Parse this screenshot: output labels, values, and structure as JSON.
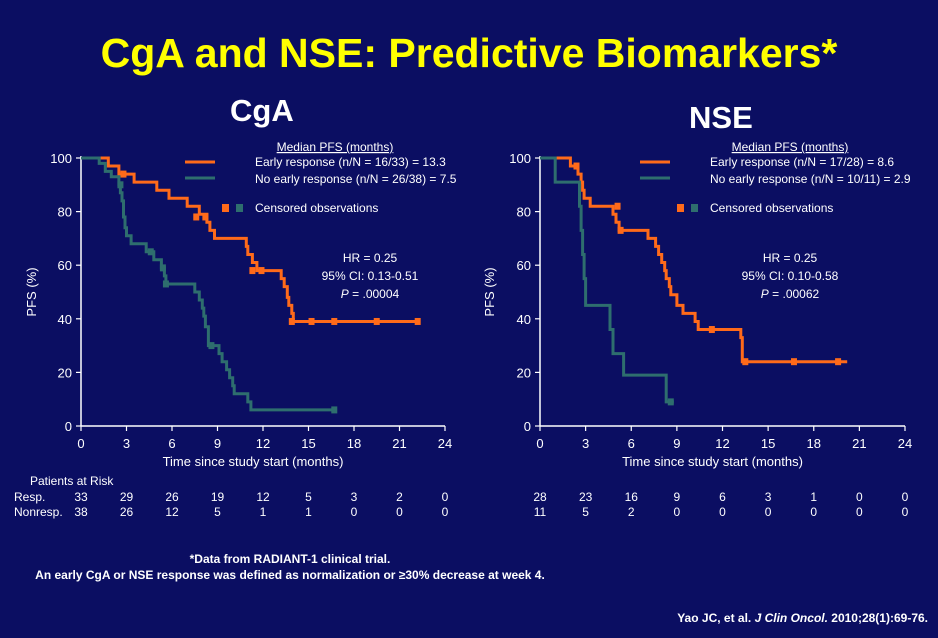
{
  "title": "CgA and NSE: Predictive Biomarkers*",
  "colors": {
    "early": "#ff6a1a",
    "no_early": "#2e6e6e",
    "background": "#0b0e62",
    "title": "#ffff00"
  },
  "chart_data": [
    {
      "type": "line",
      "subtitle": "CgA",
      "xlabel": "Time since study start (months)",
      "ylabel": "PFS (%)",
      "xlim": [
        0,
        24
      ],
      "ylim": [
        0,
        100
      ],
      "xticks": [
        0,
        3,
        6,
        9,
        12,
        15,
        18,
        21,
        24
      ],
      "yticks": [
        0,
        20,
        40,
        60,
        80,
        100
      ],
      "legend_header": "Median PFS (months)",
      "censored_label": "Censored observations",
      "annotation": {
        "hr": "HR = 0.25",
        "ci": "95% CI: 0.13-0.51",
        "p_label": "P",
        "p_value": " = .00004"
      },
      "series": [
        {
          "name": "Early response (n/N = 16/33) = 13.3",
          "color": "#ff6a1a",
          "steps": [
            [
              0,
              100
            ],
            [
              1.8,
              100
            ],
            [
              1.8,
              97
            ],
            [
              2.5,
              97
            ],
            [
              2.5,
              94
            ],
            [
              3.5,
              94
            ],
            [
              3.5,
              91
            ],
            [
              5,
              91
            ],
            [
              5,
              88
            ],
            [
              5.8,
              88
            ],
            [
              5.8,
              85
            ],
            [
              7,
              85
            ],
            [
              7,
              82
            ],
            [
              7.8,
              82
            ],
            [
              7.8,
              79
            ],
            [
              8.3,
              79
            ],
            [
              8.3,
              76
            ],
            [
              8.5,
              76
            ],
            [
              8.5,
              73
            ],
            [
              8.8,
              73
            ],
            [
              8.8,
              70
            ],
            [
              10.9,
              70
            ],
            [
              10.9,
              67
            ],
            [
              11,
              67
            ],
            [
              11,
              64
            ],
            [
              11.3,
              64
            ],
            [
              11.3,
              61
            ],
            [
              11.6,
              61
            ],
            [
              11.6,
              58
            ],
            [
              13.2,
              58
            ],
            [
              13.2,
              55
            ],
            [
              13.4,
              55
            ],
            [
              13.4,
              52
            ],
            [
              13.6,
              52
            ],
            [
              13.6,
              48
            ],
            [
              13.7,
              48
            ],
            [
              13.7,
              45
            ],
            [
              13.9,
              45
            ],
            [
              13.9,
              42
            ],
            [
              14.0,
              42
            ],
            [
              14.0,
              39
            ],
            [
              22.2,
              39
            ]
          ],
          "censored": [
            [
              2.8,
              94
            ],
            [
              7.6,
              78
            ],
            [
              8.2,
              78
            ],
            [
              11.3,
              58
            ],
            [
              11.9,
              58
            ],
            [
              13.9,
              39
            ],
            [
              15.2,
              39
            ],
            [
              16.7,
              39
            ],
            [
              19.5,
              39
            ],
            [
              22.2,
              39
            ]
          ]
        },
        {
          "name": "No early response (n/N = 26/38) = 7.5",
          "color": "#2e6e6e",
          "steps": [
            [
              0,
              100
            ],
            [
              1.2,
              100
            ],
            [
              1.2,
              98
            ],
            [
              1.6,
              98
            ],
            [
              1.6,
              95
            ],
            [
              2,
              95
            ],
            [
              2,
              93
            ],
            [
              2.5,
              93
            ],
            [
              2.5,
              90
            ],
            [
              2.6,
              90
            ],
            [
              2.6,
              87
            ],
            [
              2.7,
              87
            ],
            [
              2.7,
              84
            ],
            [
              2.8,
              84
            ],
            [
              2.8,
              78
            ],
            [
              2.9,
              78
            ],
            [
              2.9,
              74
            ],
            [
              3,
              74
            ],
            [
              3,
              71
            ],
            [
              3.3,
              71
            ],
            [
              3.3,
              68
            ],
            [
              4.3,
              68
            ],
            [
              4.3,
              65
            ],
            [
              4.8,
              65
            ],
            [
              4.8,
              62
            ],
            [
              5.3,
              62
            ],
            [
              5.3,
              59
            ],
            [
              5.5,
              59
            ],
            [
              5.5,
              56
            ],
            [
              5.6,
              56
            ],
            [
              5.6,
              53
            ],
            [
              7.5,
              53
            ],
            [
              7.5,
              50
            ],
            [
              7.8,
              50
            ],
            [
              7.8,
              47
            ],
            [
              8,
              47
            ],
            [
              8,
              44
            ],
            [
              8.1,
              44
            ],
            [
              8.1,
              41
            ],
            [
              8.2,
              41
            ],
            [
              8.2,
              37
            ],
            [
              8.4,
              37
            ],
            [
              8.4,
              30
            ],
            [
              9.1,
              30
            ],
            [
              9.1,
              27
            ],
            [
              9.3,
              27
            ],
            [
              9.3,
              24
            ],
            [
              9.6,
              24
            ],
            [
              9.6,
              21
            ],
            [
              9.8,
              21
            ],
            [
              9.8,
              18
            ],
            [
              10,
              18
            ],
            [
              10,
              15
            ],
            [
              10.1,
              15
            ],
            [
              10.1,
              12
            ],
            [
              11,
              12
            ],
            [
              11,
              9
            ],
            [
              11.2,
              9
            ],
            [
              11.2,
              6
            ],
            [
              16.7,
              6
            ]
          ],
          "censored": [
            [
              2.6,
              90
            ],
            [
              4.6,
              65
            ],
            [
              5.4,
              59
            ],
            [
              5.6,
              53
            ],
            [
              8.6,
              30
            ],
            [
              16.7,
              6
            ]
          ]
        }
      ],
      "risk_times": [
        0,
        3,
        6,
        9,
        12,
        15,
        18,
        21,
        24
      ],
      "risk": {
        "resp": [
          "33",
          "29",
          "26",
          "19",
          "12",
          "5",
          "3",
          "2",
          "0"
        ],
        "nonresp": [
          "38",
          "26",
          "12",
          "5",
          "1",
          "1",
          "0",
          "0",
          "0"
        ]
      }
    },
    {
      "type": "line",
      "subtitle": "NSE",
      "xlabel": "Time since study start (months)",
      "ylabel": "PFS (%)",
      "xlim": [
        0,
        24
      ],
      "ylim": [
        0,
        100
      ],
      "xticks": [
        0,
        3,
        6,
        9,
        12,
        15,
        18,
        21,
        24
      ],
      "yticks": [
        0,
        20,
        40,
        60,
        80,
        100
      ],
      "legend_header": "Median PFS (months)",
      "censored_label": "Censored observations",
      "annotation": {
        "hr": "HR = 0.25",
        "ci": "95% CI: 0.10-0.58",
        "p_label": "P",
        "p_value": " = .00062"
      },
      "series": [
        {
          "name": "Early response (n/N = 17/28) = 8.6",
          "color": "#ff6a1a",
          "steps": [
            [
              0,
              100
            ],
            [
              2.0,
              100
            ],
            [
              2.0,
              97
            ],
            [
              2.5,
              97
            ],
            [
              2.5,
              94
            ],
            [
              2.7,
              94
            ],
            [
              2.7,
              91
            ],
            [
              2.8,
              91
            ],
            [
              2.8,
              88
            ],
            [
              2.9,
              88
            ],
            [
              2.9,
              85
            ],
            [
              3.3,
              85
            ],
            [
              3.3,
              82
            ],
            [
              4.8,
              82
            ],
            [
              4.8,
              79
            ],
            [
              5.0,
              79
            ],
            [
              5.0,
              76
            ],
            [
              5.2,
              76
            ],
            [
              5.2,
              73
            ],
            [
              7.1,
              73
            ],
            [
              7.1,
              70
            ],
            [
              7.6,
              70
            ],
            [
              7.6,
              67
            ],
            [
              7.8,
              67
            ],
            [
              7.8,
              64
            ],
            [
              8.0,
              64
            ],
            [
              8.0,
              61
            ],
            [
              8.2,
              61
            ],
            [
              8.2,
              58
            ],
            [
              8.3,
              58
            ],
            [
              8.3,
              55
            ],
            [
              8.5,
              55
            ],
            [
              8.5,
              52
            ],
            [
              8.6,
              52
            ],
            [
              8.6,
              49
            ],
            [
              9.0,
              49
            ],
            [
              9.0,
              45
            ],
            [
              9.4,
              45
            ],
            [
              9.4,
              42
            ],
            [
              10.2,
              42
            ],
            [
              10.2,
              39
            ],
            [
              10.4,
              39
            ],
            [
              10.4,
              36
            ],
            [
              13.2,
              36
            ],
            [
              13.2,
              33
            ],
            [
              13.3,
              33
            ],
            [
              13.3,
              24
            ],
            [
              20.2,
              24
            ]
          ],
          "censored": [
            [
              2.4,
              97
            ],
            [
              5.1,
              82
            ],
            [
              5.3,
              73
            ],
            [
              11.3,
              36
            ],
            [
              13.5,
              24
            ],
            [
              16.7,
              24
            ],
            [
              19.6,
              24
            ]
          ]
        },
        {
          "name": "No early response (n/N = 10/11) = 2.9",
          "color": "#2e6e6e",
          "steps": [
            [
              0,
              100
            ],
            [
              1.0,
              100
            ],
            [
              1.0,
              91
            ],
            [
              2.6,
              91
            ],
            [
              2.6,
              82
            ],
            [
              2.7,
              82
            ],
            [
              2.7,
              73
            ],
            [
              2.8,
              73
            ],
            [
              2.8,
              64
            ],
            [
              2.9,
              64
            ],
            [
              2.9,
              55
            ],
            [
              3.0,
              55
            ],
            [
              3.0,
              45
            ],
            [
              4.6,
              45
            ],
            [
              4.6,
              36
            ],
            [
              4.8,
              36
            ],
            [
              4.8,
              27
            ],
            [
              5.5,
              27
            ],
            [
              5.5,
              19
            ],
            [
              8.3,
              19
            ],
            [
              8.3,
              9
            ],
            [
              8.8,
              9
            ]
          ],
          "censored": [
            [
              8.6,
              9
            ]
          ]
        }
      ],
      "risk_times": [
        0,
        3,
        6,
        9,
        12,
        15,
        18,
        21,
        24
      ],
      "risk": {
        "resp": [
          "28",
          "23",
          "16",
          "9",
          "6",
          "3",
          "1",
          "0",
          "0"
        ],
        "nonresp": [
          "11",
          "5",
          "2",
          "0",
          "0",
          "0",
          "0",
          "0",
          "0"
        ]
      }
    }
  ],
  "risk_table": {
    "heading": "Patients at Risk",
    "resp_label": "Resp.",
    "nonresp_label": "Nonresp."
  },
  "footnotes": {
    "line1": "*Data from RADIANT-1 clinical trial.",
    "line2": "An early CgA or NSE response was defined as normalization or ≥30% decrease at week 4."
  },
  "citation": {
    "authors": "Yao JC, et al. ",
    "journal": "J Clin Oncol.",
    "rest": " 2010;28(1):69-76."
  }
}
